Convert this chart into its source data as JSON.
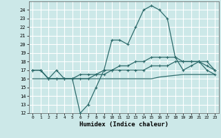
{
  "xlabel": "Humidex (Indice chaleur)",
  "x": [
    0,
    1,
    2,
    3,
    4,
    5,
    6,
    7,
    8,
    9,
    10,
    11,
    12,
    13,
    14,
    15,
    16,
    17,
    18,
    19,
    20,
    21,
    22,
    23
  ],
  "line1": [
    17,
    17,
    16,
    17,
    16,
    16,
    12,
    13,
    15,
    17,
    20.5,
    20.5,
    20,
    22,
    24,
    24.5,
    24,
    23,
    18.5,
    17,
    17.5,
    18,
    17,
    16.5
  ],
  "line2": [
    17,
    17,
    16,
    16,
    16,
    16,
    16,
    16,
    16.5,
    16.5,
    17,
    17.5,
    17.5,
    18,
    18,
    18.5,
    18.5,
    18.5,
    18.5,
    18,
    18,
    18,
    17.5,
    17
  ],
  "line3": [
    16,
    16,
    16,
    16,
    16,
    16,
    16,
    16,
    16,
    16,
    16,
    16,
    16,
    16,
    16,
    16,
    16.2,
    16.3,
    16.4,
    16.5,
    16.5,
    16.5,
    16.5,
    16.5
  ],
  "line4": [
    17,
    17,
    16,
    16,
    16,
    16,
    16.5,
    16.5,
    16.5,
    17,
    17,
    17,
    17,
    17,
    17,
    17.5,
    17.5,
    17.5,
    18,
    18,
    18,
    18,
    18,
    17
  ],
  "bg_color": "#cce8e8",
  "line_color": "#2d6b6b",
  "grid_color": "#ffffff",
  "ylim": [
    12,
    25
  ],
  "xlim": [
    -0.5,
    23.5
  ],
  "yticks": [
    12,
    13,
    14,
    15,
    16,
    17,
    18,
    19,
    20,
    21,
    22,
    23,
    24
  ],
  "xticks": [
    0,
    1,
    2,
    3,
    4,
    5,
    6,
    7,
    8,
    9,
    10,
    11,
    12,
    13,
    14,
    15,
    16,
    17,
    18,
    19,
    20,
    21,
    22,
    23
  ]
}
